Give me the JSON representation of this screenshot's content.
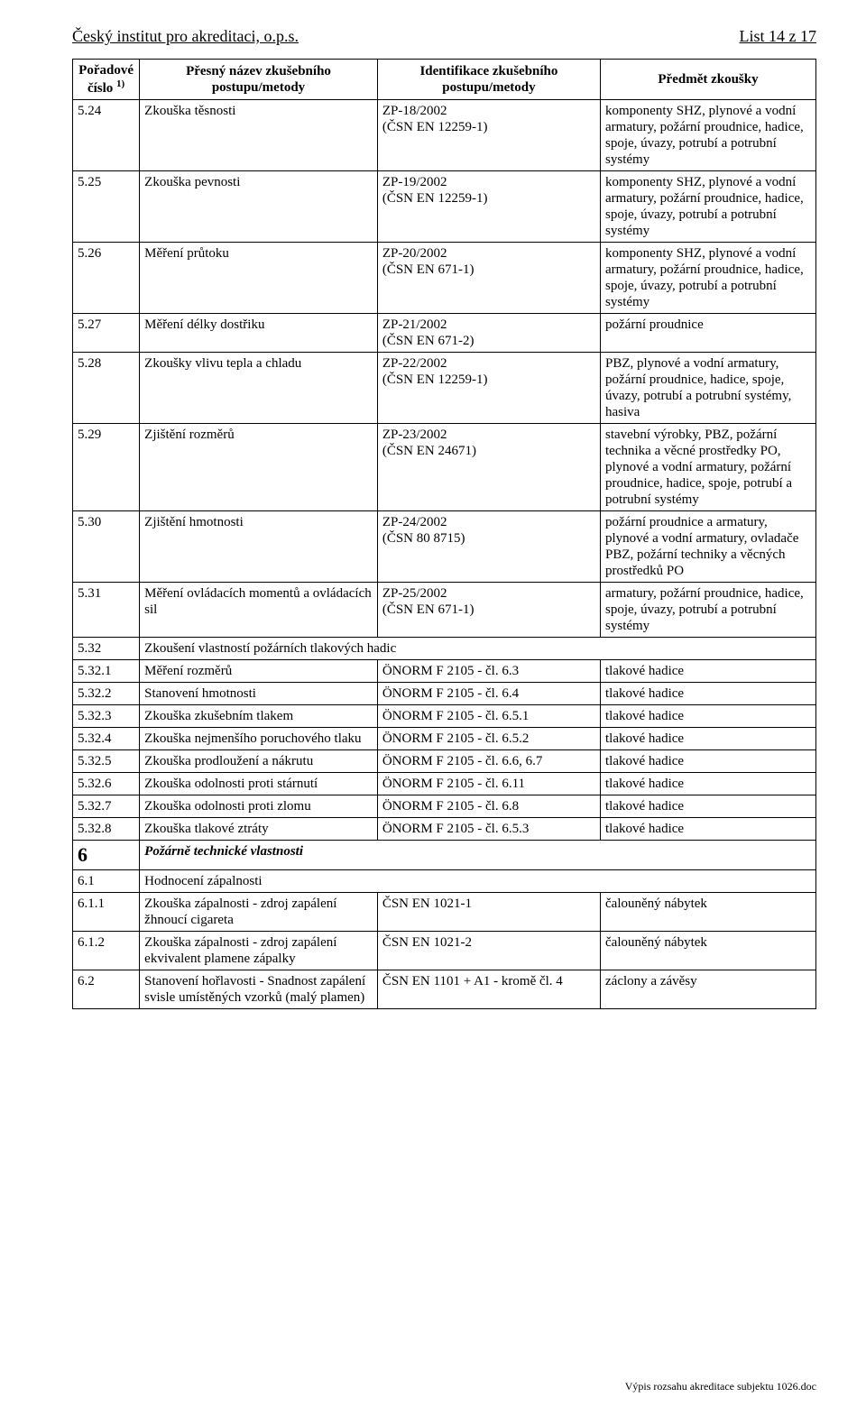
{
  "header": {
    "org": "Český institut pro akreditaci, o.p.s.",
    "page": "List 14 z 17"
  },
  "columns": {
    "num": "Pořadové číslo",
    "num_sup": "1)",
    "name": "Přesný název zkušebního postupu/metody",
    "id": "Identifikace zkušebního postupu/metody",
    "subject": "Předmět zkoušky"
  },
  "rows": [
    {
      "n": "5.24",
      "a": "Zkouška těsnosti",
      "b": "ZP-18/2002\n(ČSN EN 12259-1)",
      "c": "komponenty SHZ, plynové a vodní armatury, požární proudnice, hadice, spoje, úvazy, potrubí a potrubní systémy"
    },
    {
      "n": "5.25",
      "a": "Zkouška pevnosti",
      "b": "ZP-19/2002\n(ČSN EN 12259-1)",
      "c": "komponenty SHZ, plynové a vodní armatury, požární proudnice, hadice, spoje, úvazy, potrubí a potrubní systémy"
    },
    {
      "n": "5.26",
      "a": "Měření průtoku",
      "b": "ZP-20/2002\n(ČSN EN 671-1)",
      "c": "komponenty SHZ, plynové a vodní armatury, požární proudnice, hadice, spoje, úvazy, potrubí a potrubní systémy"
    },
    {
      "n": "5.27",
      "a": "Měření délky dostřiku",
      "b": "ZP-21/2002\n(ČSN EN 671-2)",
      "c": "požární proudnice"
    },
    {
      "n": "5.28",
      "a": "Zkoušky vlivu tepla a chladu",
      "b": "ZP-22/2002\n(ČSN EN 12259-1)",
      "c": "PBZ, plynové a vodní armatury, požární proudnice, hadice, spoje, úvazy, potrubí a potrubní systémy, hasiva"
    },
    {
      "n": "5.29",
      "a": "Zjištění rozměrů",
      "b": "ZP-23/2002\n(ČSN EN 24671)",
      "c": "stavební výrobky, PBZ, požární technika a věcné prostředky PO, plynové a vodní armatury, požární proudnice, hadice, spoje, potrubí a potrubní systémy"
    },
    {
      "n": "5.30",
      "a": "Zjištění hmotnosti",
      "b": "ZP-24/2002\n(ČSN 80 8715)",
      "c": "požární proudnice a armatury, plynové a vodní armatury, ovladače PBZ, požární techniky a věcných prostředků PO"
    },
    {
      "n": "5.31",
      "a": "Měření ovládacích momentů a ovládacích sil",
      "b": "ZP-25/2002\n(ČSN EN 671-1)",
      "c": "armatury, požární proudnice, hadice, spoje, úvazy, potrubí a potrubní systémy"
    },
    {
      "n": "5.32",
      "a": "Zkoušení vlastností požárních tlakových hadic",
      "span": true
    },
    {
      "n": "5.32.1",
      "a": "Měření rozměrů",
      "b": "ÖNORM F 2105 - čl. 6.3",
      "c": "tlakové hadice"
    },
    {
      "n": "5.32.2",
      "a": "Stanovení hmotnosti",
      "b": "ÖNORM F 2105 - čl. 6.4",
      "c": "tlakové hadice"
    },
    {
      "n": "5.32.3",
      "a": "Zkouška zkušebním tlakem",
      "b": "ÖNORM F 2105 - čl. 6.5.1",
      "c": "tlakové hadice"
    },
    {
      "n": "5.32.4",
      "a": "Zkouška nejmenšího poruchového tlaku",
      "b": "ÖNORM F 2105 - čl. 6.5.2",
      "c": "tlakové hadice"
    },
    {
      "n": "5.32.5",
      "a": "Zkouška prodloužení a nákrutu",
      "b": "ÖNORM F 2105 - čl. 6.6, 6.7",
      "c": "tlakové hadice"
    },
    {
      "n": "5.32.6",
      "a": "Zkouška odolnosti proti stárnutí",
      "b": "ÖNORM F 2105 - čl. 6.11",
      "c": "tlakové hadice"
    },
    {
      "n": "5.32.7",
      "a": "Zkouška odolnosti proti zlomu",
      "b": "ÖNORM F 2105 - čl. 6.8",
      "c": "tlakové hadice"
    },
    {
      "n": "5.32.8",
      "a": "Zkouška tlakové ztráty",
      "b": "ÖNORM F 2105 - čl. 6.5.3",
      "c": "tlakové hadice"
    },
    {
      "n": "6",
      "a": "Požárně technické vlastnosti",
      "section": true
    },
    {
      "n": "6.1",
      "a": "Hodnocení zápalnosti",
      "span": true
    },
    {
      "n": "6.1.1",
      "a": "Zkouška zápalnosti - zdroj zapálení žhnoucí cigareta",
      "b": "ČSN EN 1021-1",
      "c": "čalouněný nábytek"
    },
    {
      "n": "6.1.2",
      "a": "Zkouška zápalnosti - zdroj zapálení ekvivalent plamene zápalky",
      "b": "ČSN EN 1021-2",
      "c": "čalouněný nábytek"
    },
    {
      "n": "6.2",
      "a": "Stanovení hořlavosti - Snadnost zapálení svisle umístěných vzorků (malý plamen)",
      "b": "ČSN EN 1101 + A1 - kromě čl. 4",
      "c": "záclony a závěsy"
    }
  ],
  "footer": "Výpis rozsahu akreditace subjektu 1026.doc"
}
